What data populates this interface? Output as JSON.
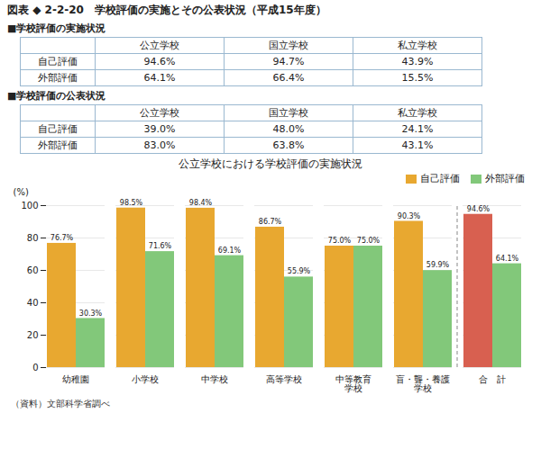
{
  "title": "図表 ◆ 2-2-20　学校評価の実施とその公表状況（平成15年度）",
  "tables": [
    {
      "title": "■学校評価の実施状況",
      "columns": [
        "公立学校",
        "国立学校",
        "私立学校"
      ],
      "rows": [
        {
          "label": "自己評価",
          "cells": [
            "94.6%",
            "94.7%",
            "43.9%"
          ]
        },
        {
          "label": "外部評価",
          "cells": [
            "64.1%",
            "66.4%",
            "15.5%"
          ]
        }
      ]
    },
    {
      "title": "■学校評価の公表状況",
      "columns": [
        "公立学校",
        "国立学校",
        "私立学校"
      ],
      "rows": [
        {
          "label": "自己評価",
          "cells": [
            "39.0%",
            "48.0%",
            "24.1%"
          ]
        },
        {
          "label": "外部評価",
          "cells": [
            "83.0%",
            "63.8%",
            "43.1%"
          ]
        }
      ]
    }
  ],
  "chart_data": {
    "type": "bar",
    "title": "公立学校における学校評価の実施状況",
    "ylabel": "(%)",
    "categories": [
      "幼稚園",
      "小学校",
      "中学校",
      "高等学校",
      "中等教育\n学校",
      "盲・聾・養護\n学校",
      "合　計"
    ],
    "series": [
      {
        "name": "自己評価",
        "color": "#e8a830",
        "colors": [
          "#e8a830",
          "#e8a830",
          "#e8a830",
          "#e8a830",
          "#e8a830",
          "#e8a830",
          "#d86050"
        ],
        "values": [
          76.7,
          98.5,
          98.4,
          86.7,
          75.0,
          90.3,
          94.6
        ],
        "value_labels": [
          "76.7%",
          "98.5%",
          "98.4%",
          "86.7%",
          "75.0%",
          "90.3%",
          "94.6%"
        ]
      },
      {
        "name": "外部評価",
        "color": "#82c87a",
        "values": [
          30.3,
          71.6,
          69.1,
          55.9,
          75.0,
          59.9,
          64.1
        ],
        "value_labels": [
          "30.3%",
          "71.6%",
          "69.1%",
          "55.9%",
          "75.0%",
          "59.9%",
          "64.1%"
        ]
      }
    ],
    "ylim": [
      0,
      100
    ],
    "yticks": [
      0,
      20,
      40,
      60,
      80,
      100
    ],
    "grid": true,
    "legend": "upper right",
    "data_labels": true,
    "annotations": [
      "（資料）文部科学省調べ"
    ]
  }
}
